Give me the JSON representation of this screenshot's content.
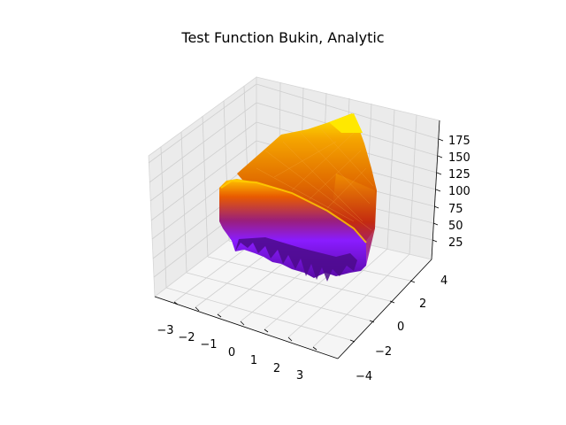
{
  "chart_data": {
    "type": "surface3d",
    "title": "Test Function Bukin, Analytic",
    "xlabel": "",
    "ylabel": "",
    "zlabel": "",
    "x_ticks": [
      "−3",
      "−2",
      "−1",
      "0",
      "1",
      "2",
      "3"
    ],
    "y_ticks": [
      "−4",
      "−2",
      "0",
      "2",
      "4"
    ],
    "z_ticks": [
      "25",
      "50",
      "75",
      "100",
      "125",
      "150",
      "175"
    ],
    "xlim": [
      -3.5,
      3.5
    ],
    "ylim": [
      -4.5,
      4.5
    ],
    "zlim": [
      0,
      190
    ],
    "grid": true,
    "colormap": "gnuplot",
    "surface_outline": {
      "z_min_approx": 5,
      "z_max_approx": 190
    },
    "colors": {
      "pane_back": "#ebebeb",
      "pane_side": "#f2f2f2",
      "pane_floor": "#f7f7f7",
      "grid": "#d0d0d0",
      "low": "#4b0082",
      "mid_low": "#8a1cff",
      "mid": "#cc2a00",
      "mid_high": "#f08c00",
      "high": "#ffe800"
    }
  }
}
